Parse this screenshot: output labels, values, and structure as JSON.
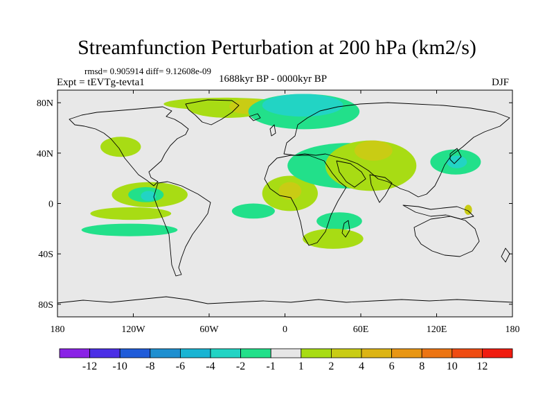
{
  "chart_data": {
    "type": "heatmap",
    "title": "Streamfunction Perturbation at 200 hPa (km2/s)",
    "stats_text": "rmsd= 0.905914 diff= 9.12608e-09",
    "left_subtitle": "Expt = tEVTg-tevta1",
    "center_subtitle": "1688kyr BP - 0000kyr BP",
    "right_subtitle": "DJF",
    "x_ticks": [
      {
        "value": -180,
        "label": "180"
      },
      {
        "value": -120,
        "label": "120W"
      },
      {
        "value": -60,
        "label": "60W"
      },
      {
        "value": 0,
        "label": "0"
      },
      {
        "value": 60,
        "label": "60E"
      },
      {
        "value": 120,
        "label": "120E"
      },
      {
        "value": 180,
        "label": "180"
      }
    ],
    "y_ticks": [
      {
        "value": 80,
        "label": "80N"
      },
      {
        "value": 40,
        "label": "40N"
      },
      {
        "value": 0,
        "label": "0"
      },
      {
        "value": -40,
        "label": "40S"
      },
      {
        "value": -80,
        "label": "80S"
      }
    ],
    "xlim": [
      -180,
      180
    ],
    "ylim": [
      -90,
      90
    ],
    "colorbar": {
      "colors": [
        "#8a22e6",
        "#4b2ee6",
        "#1f5bd9",
        "#1e8fd0",
        "#19b4d3",
        "#22d4c4",
        "#22e08a",
        "#e6e6e6",
        "#a8dc14",
        "#c9cc14",
        "#dcb414",
        "#e89614",
        "#ec7412",
        "#ef4c12",
        "#f01c10"
      ],
      "labels": [
        "-12",
        "-10",
        "-8",
        "-6",
        "-4",
        "-2",
        "-1",
        "1",
        "2",
        "4",
        "6",
        "8",
        "10",
        "12"
      ]
    },
    "regions": [
      {
        "level": 1,
        "center": [
          -48,
          79
        ],
        "radius": [
          48,
          5
        ]
      },
      {
        "level": 1,
        "center": [
          -45,
          76
        ],
        "radius": [
          32,
          8
        ]
      },
      {
        "level": 2,
        "center": [
          -30,
          77
        ],
        "radius": [
          14,
          6
        ]
      },
      {
        "level": 1,
        "center": [
          -130,
          45
        ],
        "radius": [
          16,
          8
        ]
      },
      {
        "level": 1,
        "center": [
          -107,
          7
        ],
        "radius": [
          30,
          10
        ]
      },
      {
        "level": -1,
        "center": [
          -110,
          7
        ],
        "radius": [
          14,
          6
        ]
      },
      {
        "level": -2,
        "center": [
          -108,
          6
        ],
        "radius": [
          6,
          4
        ]
      },
      {
        "level": 1,
        "center": [
          -122,
          -8
        ],
        "radius": [
          32,
          5
        ]
      },
      {
        "level": -1,
        "center": [
          -123,
          -21
        ],
        "radius": [
          38,
          5
        ]
      },
      {
        "level": -1,
        "center": [
          -25,
          -6
        ],
        "radius": [
          17,
          6
        ]
      },
      {
        "level": 1,
        "center": [
          4,
          8
        ],
        "radius": [
          22,
          14
        ]
      },
      {
        "level": 2,
        "center": [
          4,
          10
        ],
        "radius": [
          9,
          7
        ]
      },
      {
        "level": -1,
        "center": [
          15,
          73
        ],
        "radius": [
          44,
          14
        ]
      },
      {
        "level": -2,
        "center": [
          14,
          78
        ],
        "radius": [
          32,
          9
        ]
      },
      {
        "level": -1,
        "center": [
          50,
          30
        ],
        "radius": [
          48,
          18
        ]
      },
      {
        "level": 1,
        "center": [
          68,
          30
        ],
        "radius": [
          36,
          20
        ]
      },
      {
        "level": 2,
        "center": [
          70,
          42
        ],
        "radius": [
          15,
          8
        ]
      },
      {
        "level": -1,
        "center": [
          135,
          33
        ],
        "radius": [
          20,
          10
        ]
      },
      {
        "level": -2,
        "center": [
          136,
          33
        ],
        "radius": [
          8,
          5
        ]
      },
      {
        "level": -1,
        "center": [
          43,
          -14
        ],
        "radius": [
          18,
          7
        ]
      },
      {
        "level": 1,
        "center": [
          38,
          -28
        ],
        "radius": [
          24,
          8
        ]
      },
      {
        "level": 2,
        "center": [
          145,
          -5
        ],
        "radius": [
          3,
          4
        ]
      }
    ]
  }
}
